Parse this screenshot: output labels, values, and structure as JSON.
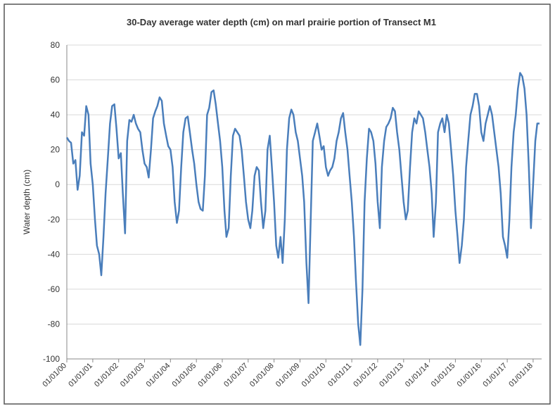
{
  "chart_data": {
    "type": "line",
    "title": "30-Day average water depth (cm) on marl prairie portion of Transect M1",
    "y_label": "Water depth (cm)",
    "x": [
      "01/01/00",
      "02/01/00",
      "03/01/00",
      "04/01/00",
      "05/01/00",
      "06/01/00",
      "07/01/00",
      "08/01/00",
      "09/01/00",
      "10/01/00",
      "11/01/00",
      "12/01/00",
      "01/01/01",
      "02/01/01",
      "03/01/01",
      "04/01/01",
      "05/01/01",
      "06/01/01",
      "07/01/01",
      "08/01/01",
      "09/01/01",
      "10/01/01",
      "11/01/01",
      "12/01/01",
      "01/01/02",
      "02/01/02",
      "03/01/02",
      "04/01/02",
      "05/01/02",
      "06/01/02",
      "07/01/02",
      "08/01/02",
      "09/01/02",
      "10/01/02",
      "11/01/02",
      "12/01/02",
      "01/01/03",
      "02/01/03",
      "03/01/03",
      "04/01/03",
      "05/01/03",
      "06/01/03",
      "07/01/03",
      "08/01/03",
      "09/01/03",
      "10/01/03",
      "11/01/03",
      "12/01/03",
      "01/01/04",
      "02/01/04",
      "03/01/04",
      "04/01/04",
      "05/01/04",
      "06/01/04",
      "07/01/04",
      "08/01/04",
      "09/01/04",
      "10/01/04",
      "11/01/04",
      "12/01/04",
      "01/01/05",
      "02/01/05",
      "03/01/05",
      "04/01/05",
      "05/01/05",
      "06/01/05",
      "07/01/05",
      "08/01/05",
      "09/01/05",
      "10/01/05",
      "11/01/05",
      "12/01/05",
      "01/01/06",
      "02/01/06",
      "03/01/06",
      "04/01/06",
      "05/01/06",
      "06/01/06",
      "07/01/06",
      "08/01/06",
      "09/01/06",
      "10/01/06",
      "11/01/06",
      "12/01/06",
      "01/01/07",
      "02/01/07",
      "03/01/07",
      "04/01/07",
      "05/01/07",
      "06/01/07",
      "07/01/07",
      "08/01/07",
      "09/01/07",
      "10/01/07",
      "11/01/07",
      "12/01/07",
      "01/01/08",
      "02/01/08",
      "03/01/08",
      "04/01/08",
      "05/01/08",
      "06/01/08",
      "07/01/08",
      "08/01/08",
      "09/01/08",
      "10/01/08",
      "11/01/08",
      "12/01/08",
      "01/01/09",
      "02/01/09",
      "03/01/09",
      "04/01/09",
      "05/01/09",
      "06/01/09",
      "07/01/09",
      "08/01/09",
      "09/01/09",
      "10/01/09",
      "11/01/09",
      "12/01/09",
      "01/01/10",
      "02/01/10",
      "03/01/10",
      "04/01/10",
      "05/01/10",
      "06/01/10",
      "07/01/10",
      "08/01/10",
      "09/01/10",
      "10/01/10",
      "11/01/10",
      "12/01/10",
      "01/01/11",
      "02/01/11",
      "03/01/11",
      "04/01/11",
      "05/01/11",
      "06/01/11",
      "07/01/11",
      "08/01/11",
      "09/01/11",
      "10/01/11",
      "11/01/11",
      "12/01/11",
      "01/01/12",
      "02/01/12",
      "03/01/12",
      "04/01/12",
      "05/01/12",
      "06/01/12",
      "07/01/12",
      "08/01/12",
      "09/01/12",
      "10/01/12",
      "11/01/12",
      "12/01/12",
      "01/01/13",
      "02/01/13",
      "03/01/13",
      "04/01/13",
      "05/01/13",
      "06/01/13",
      "07/01/13",
      "08/01/13",
      "09/01/13",
      "10/01/13",
      "11/01/13",
      "12/01/13",
      "01/01/14",
      "02/01/14",
      "03/01/14",
      "04/01/14",
      "05/01/14",
      "06/01/14",
      "07/01/14",
      "08/01/14",
      "09/01/14",
      "10/01/14",
      "11/01/14",
      "12/01/14",
      "01/01/15",
      "02/01/15",
      "03/01/15",
      "04/01/15",
      "05/01/15",
      "06/01/15",
      "07/01/15",
      "08/01/15",
      "09/01/15",
      "10/01/15",
      "11/01/15",
      "12/01/15",
      "01/01/16",
      "02/01/16",
      "03/01/16",
      "04/01/16",
      "05/01/16",
      "06/01/16",
      "07/01/16",
      "08/01/16",
      "09/01/16",
      "10/01/16",
      "11/01/16",
      "12/01/16",
      "01/01/17",
      "02/01/17",
      "03/01/17",
      "04/01/17",
      "05/01/17",
      "06/01/17",
      "07/01/17",
      "08/01/17",
      "09/01/17",
      "10/01/17",
      "11/01/17",
      "12/01/17",
      "01/01/18",
      "02/01/18",
      "03/01/18",
      "04/01/18"
    ],
    "values": [
      27,
      25,
      24,
      12,
      14,
      -3,
      5,
      30,
      28,
      45,
      40,
      12,
      0,
      -20,
      -35,
      -40,
      -52,
      -30,
      -5,
      15,
      35,
      45,
      46,
      32,
      15,
      18,
      -5,
      -28,
      25,
      37,
      36,
      40,
      35,
      32,
      30,
      20,
      12,
      10,
      4,
      20,
      38,
      42,
      45,
      50,
      48,
      35,
      28,
      22,
      20,
      10,
      -10,
      -22,
      -15,
      10,
      30,
      38,
      39,
      30,
      20,
      12,
      0,
      -10,
      -14,
      -15,
      5,
      40,
      44,
      53,
      54,
      46,
      35,
      25,
      10,
      -15,
      -30,
      -25,
      5,
      28,
      32,
      30,
      28,
      20,
      5,
      -10,
      -20,
      -25,
      -15,
      5,
      10,
      8,
      -10,
      -25,
      -15,
      20,
      28,
      10,
      -10,
      -35,
      -42,
      -30,
      -45,
      -20,
      20,
      38,
      43,
      40,
      30,
      25,
      15,
      5,
      -10,
      -45,
      -68,
      -20,
      25,
      30,
      35,
      28,
      20,
      22,
      10,
      5,
      8,
      10,
      15,
      25,
      30,
      38,
      41,
      30,
      20,
      5,
      -10,
      -30,
      -55,
      -80,
      -92,
      -60,
      -10,
      15,
      32,
      30,
      25,
      12,
      -10,
      -25,
      10,
      25,
      33,
      35,
      38,
      44,
      42,
      30,
      20,
      5,
      -10,
      -20,
      -15,
      10,
      30,
      38,
      35,
      42,
      40,
      38,
      30,
      20,
      10,
      -5,
      -30,
      -10,
      30,
      35,
      38,
      30,
      40,
      35,
      20,
      5,
      -15,
      -30,
      -45,
      -35,
      -20,
      10,
      25,
      40,
      45,
      52,
      52,
      45,
      30,
      25,
      35,
      40,
      45,
      40,
      30,
      20,
      10,
      -5,
      -30,
      -35,
      -42,
      -20,
      10,
      30,
      40,
      55,
      64,
      62,
      55,
      40,
      10,
      -25,
      0,
      25,
      35,
      35
    ],
    "color": "#4a7ebb",
    "xlim": [
      "01/01/00",
      "05/01/18"
    ],
    "xticks": [
      "01/01/00",
      "01/01/01",
      "01/01/02",
      "01/01/03",
      "01/01/04",
      "01/01/05",
      "01/01/06",
      "01/01/07",
      "01/01/08",
      "01/01/09",
      "01/01/10",
      "01/01/11",
      "01/01/12",
      "01/01/13",
      "01/01/14",
      "01/01/15",
      "01/01/16",
      "01/01/17",
      "01/01/18"
    ],
    "ylim": [
      -100,
      80
    ],
    "yticks": [
      -100,
      -80,
      -60,
      -40,
      -20,
      0,
      20,
      40,
      60,
      80
    ],
    "grid": true
  }
}
